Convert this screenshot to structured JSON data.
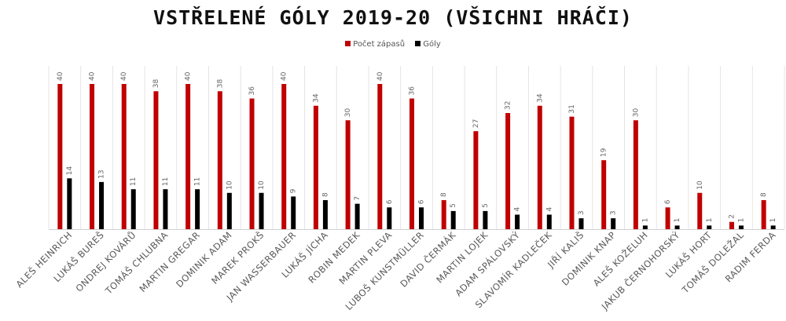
{
  "chart_data": {
    "type": "bar",
    "title": "VSTŘELENÉ GÓLY 2019-20 (VŠICHNI HRÁČI)",
    "categories": [
      "ALEŠ HEINRICH",
      "LUKÁŠ BUREŠ",
      "ONDREJ KOVÁRŮ",
      "TOMÁŠ CHLUBNA",
      "MARTIN GREGAR",
      "DOMINIK ADAM",
      "MAREK PROKŠ",
      "JAN WASSERBAUER",
      "LUKÁŠ JÍCHA",
      "ROBIN MEDEK",
      "MARTIN PLEVA",
      "LUBOŠ KUNSTMÜLLER",
      "DAVID ČERMÁK",
      "MARTIN LOJEK",
      "ADAM SPÁLOVSKÝ",
      "SLAVOMÍR KADLEČEK",
      "JIŘÍ KALIŠ",
      "DOMINIK KNAP",
      "ALEŠ KOŽELUH",
      "JAKUB ČERNOHORSKÝ",
      "LUKÁŠ HORT",
      "TOMÁŠ DOLEŽAL",
      "RADIM FERDA"
    ],
    "series": [
      {
        "name": "Počet zápasů",
        "color": "#c00000",
        "values": [
          40,
          40,
          40,
          38,
          40,
          38,
          36,
          40,
          34,
          30,
          40,
          36,
          8,
          27,
          32,
          34,
          31,
          19,
          30,
          6,
          10,
          2,
          8
        ]
      },
      {
        "name": "Góly",
        "color": "#000000",
        "values": [
          14,
          13,
          11,
          11,
          11,
          10,
          10,
          9,
          8,
          7,
          6,
          6,
          5,
          5,
          4,
          4,
          3,
          3,
          1,
          1,
          1,
          1,
          1
        ]
      }
    ],
    "ylim": [
      0,
      40
    ],
    "grid": false,
    "vertical_separators": true,
    "legend_position": "top-center",
    "data_labels": true
  }
}
